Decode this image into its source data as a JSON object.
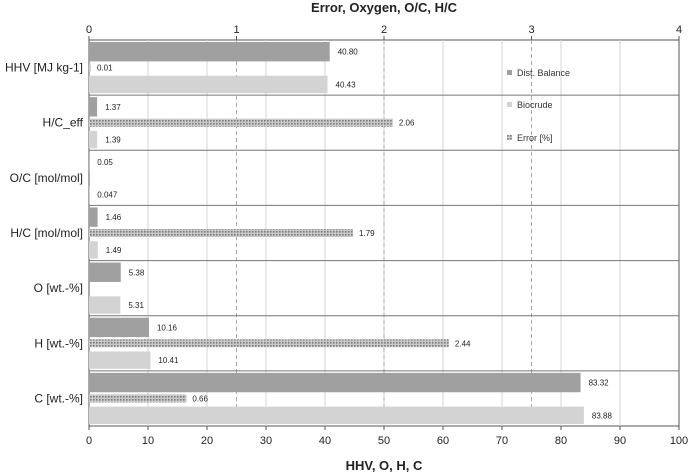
{
  "chart_data": {
    "type": "bar",
    "orientation": "horizontal",
    "title": "",
    "categories": [
      "HHV [MJ kg-1]",
      "H/C_eff",
      "O/C [mol/mol]",
      "H/C [mol/mol]",
      "O [wt.-%]",
      "H [wt.-%]",
      "C [wt.-%]"
    ],
    "series": [
      {
        "name": "Dist. Balance",
        "axis": "bottom",
        "color": "#a0a0a0",
        "pattern": "solid",
        "values": [
          40.8,
          1.37,
          0.05,
          1.46,
          5.38,
          10.16,
          83.32
        ],
        "labels": [
          "40.80",
          "1.37",
          "0.05",
          "1.46",
          "5.38",
          "10.16",
          "83.32"
        ]
      },
      {
        "name": "Error [%]",
        "axis": "top",
        "color": "#9a9a9a",
        "pattern": "dotted",
        "values": [
          0.01,
          2.06,
          null,
          1.79,
          null,
          2.44,
          0.66
        ],
        "labels": [
          "0.01",
          "2.06",
          "",
          "1.79",
          "",
          "2.44",
          "0.66"
        ]
      },
      {
        "name": "Biocrude",
        "axis": "bottom",
        "color": "#d3d3d3",
        "pattern": "solid",
        "values": [
          40.43,
          1.39,
          0.047,
          1.49,
          5.31,
          10.41,
          83.88
        ],
        "labels": [
          "40.43",
          "1.39",
          "0.047",
          "1.49",
          "5.31",
          "10.41",
          "83.88"
        ]
      }
    ],
    "top_axis": {
      "label": "Error, Oxygen, O/C, H/C",
      "min": 0,
      "max": 4,
      "ticks": [
        "0",
        "1",
        "2",
        "3",
        "4"
      ]
    },
    "bottom_axis": {
      "label": "HHV, O, H, C",
      "min": 0,
      "max": 100,
      "ticks": [
        "0",
        "10",
        "20",
        "30",
        "40",
        "50",
        "60",
        "70",
        "80",
        "90",
        "100"
      ]
    },
    "grid": true,
    "legend": {
      "position": "top-right",
      "items": [
        "Dist. Balance",
        "Biocrude",
        "Error [%]"
      ]
    }
  }
}
